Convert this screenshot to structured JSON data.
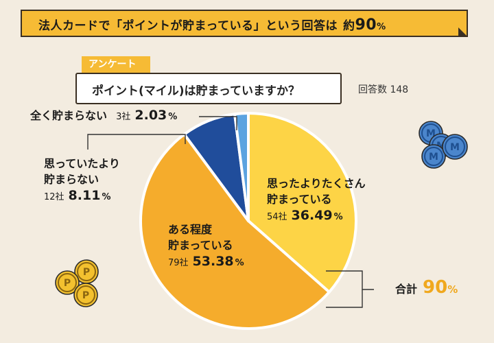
{
  "header": {
    "title": "法人カードで「ポイントが貯まっている」という回答は",
    "highlight_prefix": "約",
    "highlight_value": "90",
    "highlight_unit": "%"
  },
  "survey": {
    "tag": "アンケート",
    "question": "ポイント(マイル)は貯まっていますか？",
    "respondents": "回答数 148"
  },
  "total": {
    "label": "合計",
    "value": "90",
    "unit": "%"
  },
  "colors": {
    "bg": "#f3ece0",
    "banner": "#f6bb35",
    "slice_many": "#fdd446",
    "slice_some": "#f5ac2c",
    "slice_few": "#204d9b",
    "slice_none": "#5ba3e0",
    "coin_blue": "#4b86cc",
    "coin_gold": "#f3c12f"
  },
  "chart_data": {
    "type": "pie",
    "title": "ポイント(マイル)は貯まっていますか？",
    "total_respondents": 148,
    "slices": [
      {
        "label_lines": [
          "思ったよりたくさん",
          "貯まっている"
        ],
        "count": 54,
        "count_text": "54社",
        "value": 36.49,
        "value_text": "36.49",
        "unit": "%",
        "color": "#fdd446"
      },
      {
        "label_lines": [
          "ある程度",
          "貯まっている"
        ],
        "count": 79,
        "count_text": "79社",
        "value": 53.38,
        "value_text": "53.38",
        "unit": "%",
        "color": "#f5ac2c"
      },
      {
        "label_lines": [
          "思っていたより",
          "貯まらない"
        ],
        "count": 12,
        "count_text": "12社",
        "value": 8.11,
        "value_text": "8.11",
        "unit": "%",
        "color": "#204d9b"
      },
      {
        "label_lines": [
          "全く貯まらない"
        ],
        "count": 3,
        "count_text": "3社",
        "value": 2.03,
        "value_text": "2.03",
        "unit": "%",
        "color": "#5ba3e0"
      }
    ],
    "total_label": "合計 90%",
    "coins": {
      "blue_letter": "M",
      "gold_letter": "P"
    }
  }
}
